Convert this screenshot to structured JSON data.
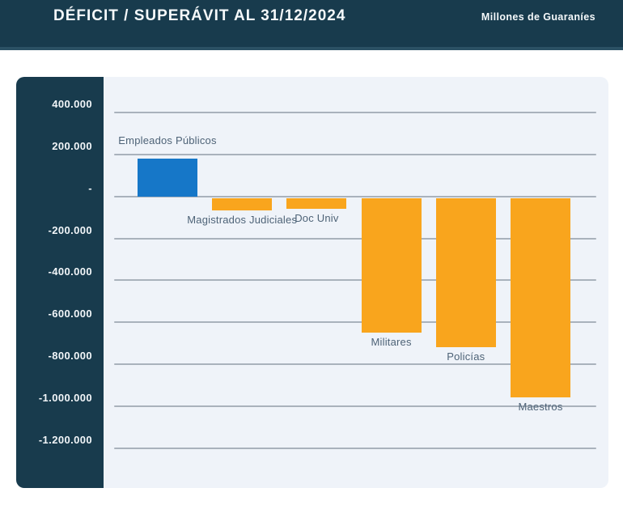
{
  "header": {
    "title": "DÉFICIT / SUPERÁVIT AL 31/12/2024",
    "unit_label": "Millones de Guaraníes"
  },
  "colors": {
    "header_bg": "#183b4d",
    "axis_panel_bg": "#183b4d",
    "plot_bg": "#eff3f9",
    "gridline": "#a9b2bc",
    "positive_bar": "#1677c8",
    "negative_bar": "#f9a51d",
    "tick_text": "#f2f6f9",
    "bar_label_text": "#4e6377"
  },
  "chart_data": {
    "type": "bar",
    "title": "DÉFICIT / SUPERÁVIT AL 31/12/2024",
    "subtitle": "Millones de Guaraníes",
    "categories": [
      "Empleados Públicos",
      "Magistrados Judiciales",
      "Doc Univ",
      "Militares",
      "Policías",
      "Maestros"
    ],
    "values": [
      180000,
      -60000,
      -50000,
      -640000,
      -710000,
      -950000
    ],
    "bar_colors": [
      "#1677c8",
      "#f9a51d",
      "#f9a51d",
      "#f9a51d",
      "#f9a51d",
      "#f9a51d"
    ],
    "y_ticks": [
      {
        "value": 400000,
        "label": "400.000"
      },
      {
        "value": 200000,
        "label": "200.000"
      },
      {
        "value": 0,
        "label": "-"
      },
      {
        "value": -200000,
        "label": "-200.000"
      },
      {
        "value": -400000,
        "label": "-400.000"
      },
      {
        "value": -600000,
        "label": "-600.000"
      },
      {
        "value": -800000,
        "label": "-800.000"
      },
      {
        "value": -1000000,
        "label": "-1.000.000"
      },
      {
        "value": -1200000,
        "label": "-1.200.000"
      }
    ],
    "ylim": [
      -1390000,
      570000
    ],
    "grid": true,
    "legend": false,
    "xlabel": "",
    "ylabel": ""
  }
}
